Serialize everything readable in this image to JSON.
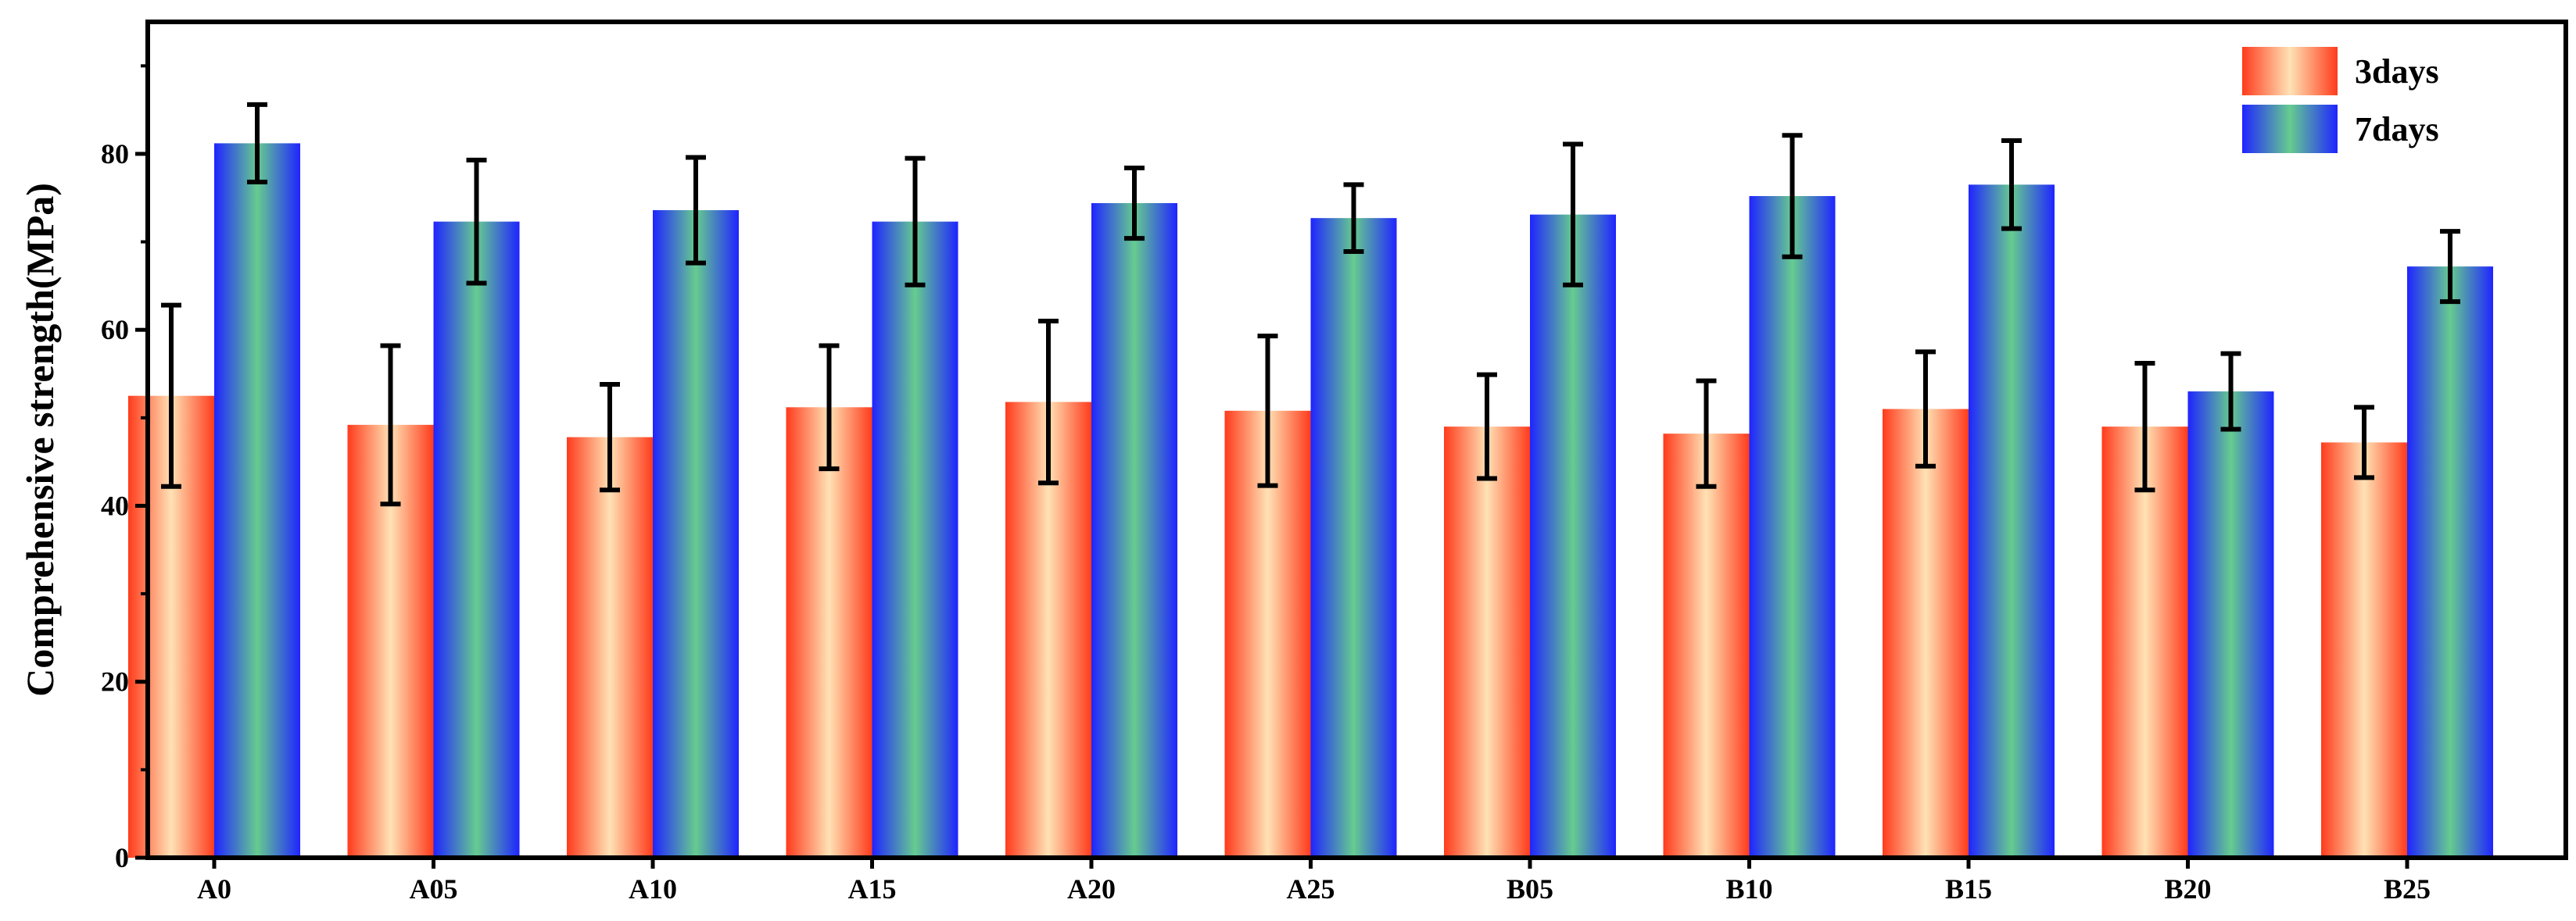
{
  "chart_data": {
    "type": "bar",
    "title": "",
    "xlabel": "",
    "ylabel": "Comprehensive strength(MPa)",
    "ylim": [
      0,
      95
    ],
    "yticks": [
      "0",
      "20",
      "40",
      "60",
      "80"
    ],
    "categories": [
      "A0",
      "A05",
      "A10",
      "A15",
      "A20",
      "A25",
      "B05",
      "B10",
      "B15",
      "B20",
      "B25"
    ],
    "series": [
      {
        "name": "3days",
        "values": [
          52.5,
          49.2,
          47.8,
          51.2,
          51.8,
          50.8,
          49.0,
          48.2,
          51.0,
          49.0,
          47.2
        ],
        "errors": [
          10.3,
          9.0,
          6.0,
          7.0,
          9.2,
          8.5,
          5.9,
          6.0,
          6.5,
          7.2,
          4.0
        ],
        "colors": {
          "edge": "#ff3b1c",
          "center": "#ffe2b5"
        }
      },
      {
        "name": "7days",
        "values": [
          81.2,
          72.3,
          73.6,
          72.3,
          74.4,
          72.7,
          73.1,
          75.2,
          76.5,
          53.0,
          67.2
        ],
        "errors": [
          4.4,
          7.0,
          6.0,
          7.2,
          4.0,
          3.8,
          8.0,
          6.9,
          5.0,
          4.3,
          4.0
        ],
        "colors": {
          "edge": "#1f24ff",
          "center": "#66cc8f"
        }
      }
    ],
    "grid": false,
    "legend_position": "top-right"
  }
}
